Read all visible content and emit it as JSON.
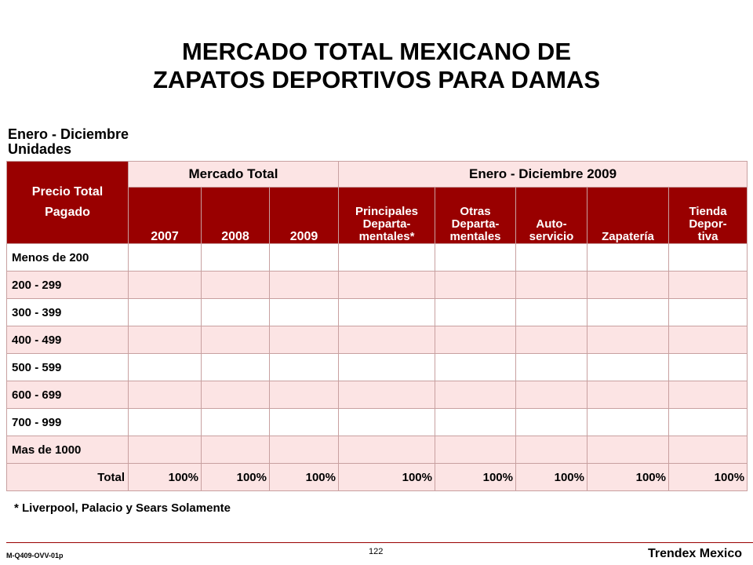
{
  "title_line1": "MERCADO TOTAL MEXICANO DE",
  "title_line2": "ZAPATOS DEPORTIVOS PARA DAMAS",
  "subtitle_line1": "Enero - Diciembre",
  "subtitle_line2": "Unidades",
  "table": {
    "row_header_line1": "Precio Total",
    "row_header_line2": "Pagado",
    "group1": "Mercado Total",
    "group2": "Enero - Diciembre 2009",
    "columns": [
      [
        "2007"
      ],
      [
        "2008"
      ],
      [
        "2009"
      ],
      [
        "Principales",
        "Departa-",
        "mentales*"
      ],
      [
        "Otras",
        "Departa-",
        "mentales"
      ],
      [
        "Auto-",
        "servicio"
      ],
      [
        "Zapatería"
      ],
      [
        "Tienda",
        "Depor-",
        "tiva"
      ]
    ],
    "rows": [
      "Menos de 200",
      "200 - 299",
      "300 - 399",
      "400 - 499",
      "500 - 599",
      "600 - 699",
      "700 - 999",
      "Mas de 1000"
    ],
    "total_label": "Total",
    "total_values": [
      "100%",
      "100%",
      "100%",
      "100%",
      "100%",
      "100%",
      "100%",
      "100%"
    ]
  },
  "footnote": "* Liverpool, Palacio y Sears Solamente",
  "footer": {
    "code": "M-Q409-OVV-01p",
    "page": "122",
    "brand": "Trendex Mexico"
  },
  "colors": {
    "header_dark": "#990000",
    "row_alt": "#fce4e4"
  }
}
